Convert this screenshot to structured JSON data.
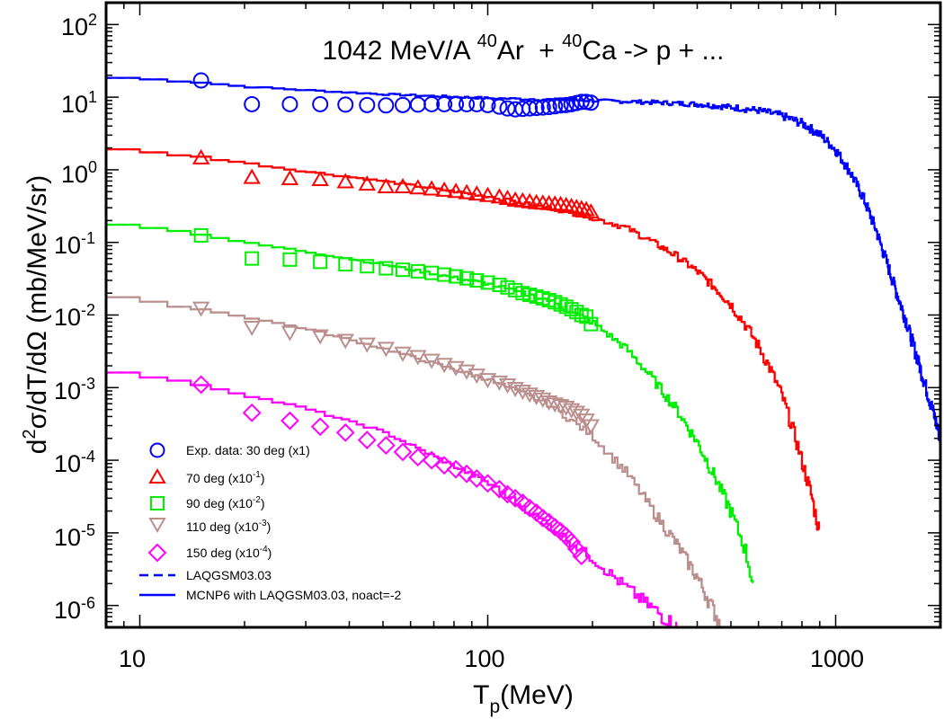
{
  "chart_data": {
    "type": "line",
    "title": "1042 MeV/A 40Ar + 40Ca -> p + ...",
    "title_parts": {
      "energy": "1042 MeV/A",
      "a1": "40",
      "el1": "Ar",
      "a2": "40",
      "el2": "Ca",
      "rest": "-> p + ..."
    },
    "xlabel": "Tp(MeV)",
    "xlabel_parts": {
      "main": "T",
      "sub": "p",
      "unit": "(MeV)"
    },
    "ylabel": "d2σ/dT/dΩ (mb/MeV/sr)",
    "ylabel_parts": {
      "d": "d",
      "sup": "2",
      "rest": "σ/dT/dΩ (mb/MeV/sr)"
    },
    "x_scale": "log",
    "y_scale": "log",
    "xlim": [
      8,
      2000
    ],
    "ylim": [
      5e-07,
      200
    ],
    "x_tick_labels": [
      "10",
      "100",
      "1000"
    ],
    "y_tick_labels": [
      {
        "base": "10",
        "exp": "2"
      },
      {
        "base": "10",
        "exp": "1"
      },
      {
        "base": "10",
        "exp": "0"
      },
      {
        "base": "10",
        "exp": "-1"
      },
      {
        "base": "10",
        "exp": "-2"
      },
      {
        "base": "10",
        "exp": "-3"
      },
      {
        "base": "10",
        "exp": "-4"
      },
      {
        "base": "10",
        "exp": "-5"
      },
      {
        "base": "10",
        "exp": "-6"
      }
    ],
    "legend_position": "bottom-left",
    "legend": [
      {
        "label": "Exp. data: 30 deg (x1)",
        "base": "",
        "exp": "",
        "tail": "",
        "marker": "circle",
        "color": "#0000ff"
      },
      {
        "label": "70 deg (x10",
        "base": "",
        "exp": "-1",
        "tail": ")",
        "marker": "triangle-up",
        "color": "#ff0000"
      },
      {
        "label": "90 deg (x10",
        "base": "",
        "exp": "-2",
        "tail": ")",
        "marker": "square",
        "color": "#00ee00"
      },
      {
        "label": "110 deg (x10",
        "base": "",
        "exp": "-3",
        "tail": ")",
        "marker": "triangle-down",
        "color": "#bc8f8f"
      },
      {
        "label": "150 deg (x10",
        "base": "",
        "exp": "-4",
        "tail": ")",
        "marker": "diamond",
        "color": "#ff00ff"
      },
      {
        "label": "LAQGSM03.03",
        "base": "",
        "exp": "",
        "tail": "",
        "marker": "dashed-line",
        "color": "#0000ff"
      },
      {
        "label": "MCNP6 with LAQGSM03.03, noact=-2",
        "base": "",
        "exp": "",
        "tail": "",
        "marker": "solid-line",
        "color": "#0000ff"
      }
    ],
    "experimental_series": [
      {
        "name": "30 deg (x1)",
        "marker": "circle",
        "color": "#0000ff",
        "x": [
          15,
          21,
          27,
          33,
          39,
          45,
          51,
          57,
          63,
          69,
          75,
          81,
          87,
          93,
          100,
          108,
          114,
          120,
          126,
          132,
          138,
          144,
          150,
          156,
          162,
          168,
          174,
          180,
          186,
          192,
          198
        ],
        "y": [
          17,
          8.0,
          8.0,
          8.0,
          7.9,
          7.8,
          7.7,
          7.8,
          7.9,
          8.0,
          8.0,
          8.0,
          8.0,
          8.0,
          7.8,
          7.4,
          7.0,
          6.8,
          6.9,
          7.0,
          7.1,
          7.2,
          7.3,
          7.5,
          7.7,
          7.8,
          8.0,
          8.3,
          8.6,
          8.6,
          8.4
        ]
      },
      {
        "name": "70 deg (x10^-1)",
        "marker": "triangle-up",
        "color": "#ff0000",
        "x": [
          15,
          21,
          27,
          33,
          39,
          45,
          51,
          57,
          63,
          69,
          75,
          81,
          87,
          93,
          100,
          108,
          114,
          120,
          126,
          132,
          138,
          144,
          150,
          156,
          162,
          168,
          174,
          180,
          186,
          192,
          198
        ],
        "y": [
          1.45,
          0.78,
          0.75,
          0.73,
          0.68,
          0.63,
          0.58,
          0.58,
          0.56,
          0.54,
          0.52,
          0.5,
          0.48,
          0.46,
          0.44,
          0.42,
          0.4,
          0.38,
          0.37,
          0.36,
          0.35,
          0.345,
          0.34,
          0.335,
          0.33,
          0.32,
          0.31,
          0.3,
          0.29,
          0.28,
          0.26
        ]
      },
      {
        "name": "90 deg (x10^-2)",
        "marker": "square",
        "color": "#00ee00",
        "x": [
          15,
          21,
          27,
          33,
          39,
          45,
          51,
          57,
          63,
          69,
          75,
          81,
          87,
          93,
          100,
          108,
          114,
          120,
          126,
          132,
          138,
          144,
          150,
          156,
          162,
          168,
          174,
          180,
          186,
          192,
          198
        ],
        "y": [
          0.125,
          0.06,
          0.058,
          0.054,
          0.05,
          0.047,
          0.044,
          0.042,
          0.04,
          0.038,
          0.036,
          0.034,
          0.032,
          0.03,
          0.028,
          0.026,
          0.024,
          0.022,
          0.02,
          0.019,
          0.018,
          0.017,
          0.016,
          0.015,
          0.014,
          0.013,
          0.012,
          0.011,
          0.01,
          0.0095,
          0.0075
        ]
      },
      {
        "name": "110 deg (x10^-3)",
        "marker": "triangle-down",
        "color": "#bc8f8f",
        "x": [
          15,
          21,
          27,
          33,
          39,
          45,
          51,
          57,
          63,
          69,
          75,
          81,
          87,
          93,
          100,
          108,
          114,
          120,
          126,
          132,
          138,
          144,
          150,
          156,
          162,
          168,
          174,
          180,
          186,
          192,
          198
        ],
        "y": [
          0.0125,
          0.0068,
          0.0058,
          0.0052,
          0.0045,
          0.004,
          0.0035,
          0.003,
          0.0027,
          0.0024,
          0.0021,
          0.0019,
          0.0017,
          0.0015,
          0.0013,
          0.0012,
          0.0011,
          0.00098,
          0.0009,
          0.00082,
          0.00076,
          0.0007,
          0.00064,
          0.0006,
          0.00057,
          0.00054,
          0.0005,
          0.00046,
          0.00042,
          0.00036,
          0.0003
        ]
      },
      {
        "name": "150 deg (x10^-4)",
        "marker": "diamond",
        "color": "#ff00ff",
        "x": [
          15,
          21,
          27,
          33,
          39,
          45,
          51,
          57,
          63,
          69,
          75,
          81,
          87,
          93,
          100,
          108,
          114,
          120,
          126,
          132,
          138,
          144,
          150,
          156,
          162,
          168,
          174,
          180,
          186
        ],
        "y": [
          0.0011,
          0.00045,
          0.00035,
          0.00029,
          0.00024,
          0.00019,
          0.00016,
          0.00013,
          0.00011,
          0.0001,
          8.5e-05,
          7.5e-05,
          6.5e-05,
          5.6e-05,
          4.8e-05,
          4e-05,
          3.4e-05,
          3e-05,
          2.6e-05,
          2.2e-05,
          1.9e-05,
          1.6e-05,
          1.4e-05,
          1.2e-05,
          1.05e-05,
          9e-06,
          7.5e-06,
          6e-06,
          4.8e-06
        ]
      }
    ],
    "model_series": [
      {
        "name": "30 deg MCNP6 / LAQGSM03.03",
        "color": "#0000ff",
        "x": [
          8,
          10,
          15,
          20,
          30,
          50,
          100,
          200,
          300,
          400,
          500,
          600,
          700,
          800,
          900,
          1000,
          1100,
          1200,
          1300,
          1400,
          1500,
          1600,
          1700,
          1800,
          1900,
          2000
        ],
        "y": [
          19,
          18,
          16,
          14,
          12.5,
          11,
          9.7,
          9.0,
          8.5,
          8.0,
          7.3,
          6.6,
          5.6,
          4.4,
          3.1,
          1.9,
          0.95,
          0.42,
          0.16,
          0.055,
          0.02,
          0.008,
          0.003,
          0.0012,
          0.0005,
          0.0002
        ]
      },
      {
        "name": "70 deg MCNP6 / LAQGSM03.03",
        "color": "#ff0000",
        "x": [
          8,
          10,
          15,
          20,
          30,
          50,
          100,
          150,
          200,
          250,
          300,
          350,
          400,
          450,
          500,
          550,
          600,
          650,
          700,
          750,
          800,
          850,
          900
        ],
        "y": [
          2.0,
          1.8,
          1.5,
          1.25,
          0.95,
          0.7,
          0.43,
          0.3,
          0.22,
          0.16,
          0.1,
          0.065,
          0.04,
          0.024,
          0.014,
          0.0075,
          0.0038,
          0.0018,
          0.0008,
          0.0003,
          0.0001,
          3.5e-05,
          1e-05
        ]
      },
      {
        "name": "90 deg MCNP6 / LAQGSM03.03",
        "color": "#00ee00",
        "x": [
          8,
          10,
          15,
          20,
          30,
          50,
          100,
          150,
          200,
          250,
          300,
          350,
          400,
          450,
          500,
          550,
          580
        ],
        "y": [
          0.19,
          0.17,
          0.13,
          0.1,
          0.075,
          0.05,
          0.027,
          0.016,
          0.008,
          0.0035,
          0.0013,
          0.0005,
          0.00018,
          6e-05,
          2e-05,
          6e-06,
          2e-06
        ]
      },
      {
        "name": "110 deg MCNP6 / LAQGSM03.03",
        "color": "#bc8f8f",
        "x": [
          8,
          10,
          15,
          20,
          30,
          50,
          100,
          150,
          200,
          250,
          300,
          350,
          400,
          450,
          470
        ],
        "y": [
          0.019,
          0.016,
          0.012,
          0.0095,
          0.0065,
          0.0035,
          0.0013,
          0.0006,
          0.00022,
          7e-05,
          2e-05,
          7e-06,
          2.5e-06,
          8e-07,
          5e-07
        ]
      },
      {
        "name": "150 deg MCNP6 / LAQGSM03.03",
        "color": "#ff00ff",
        "x": [
          8,
          10,
          15,
          20,
          30,
          50,
          100,
          150,
          200,
          250,
          300,
          350
        ],
        "y": [
          0.0017,
          0.0015,
          0.0011,
          0.0008,
          0.00052,
          0.00025,
          5e-05,
          1.3e-05,
          4.5e-06,
          1.8e-06,
          9e-07,
          5e-07
        ]
      }
    ]
  }
}
